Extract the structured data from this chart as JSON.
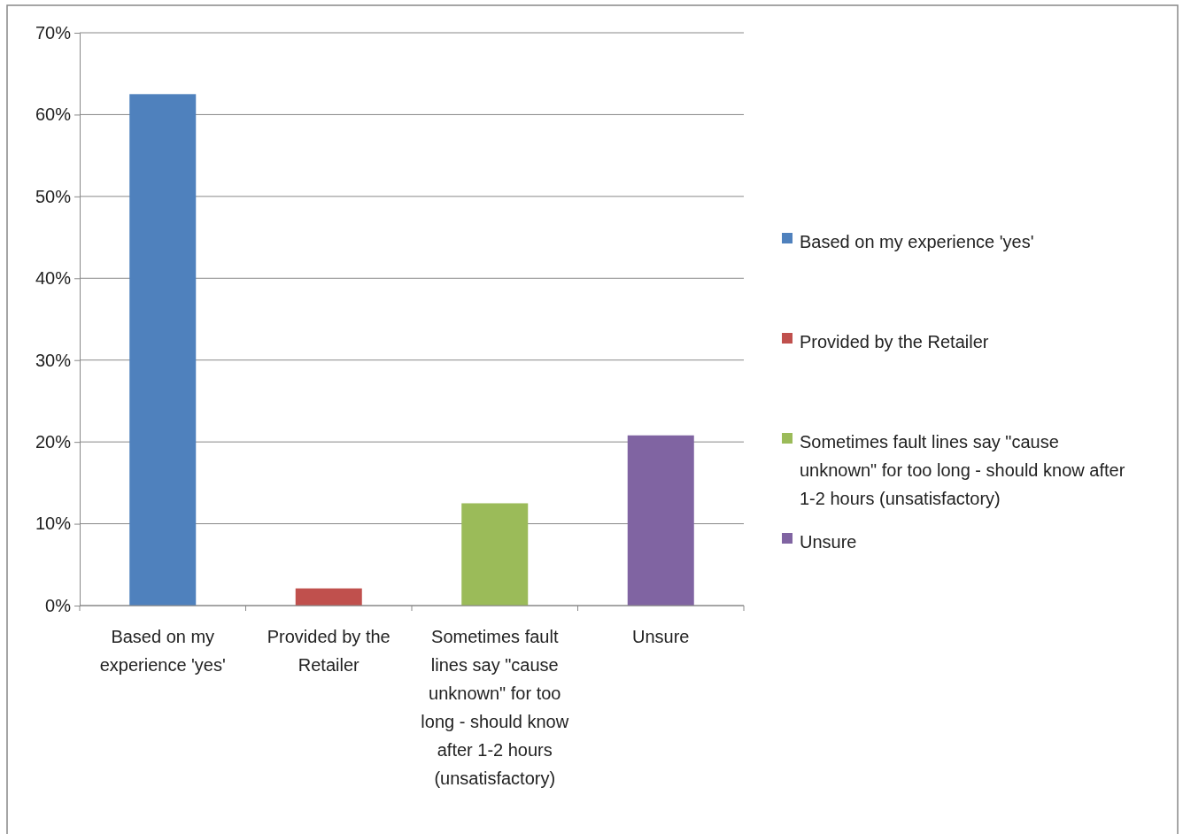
{
  "chart_data": {
    "type": "bar",
    "categories": [
      "Based on my experience 'yes'",
      "Provided by the Retailer",
      "Sometimes fault lines say \"cause unknown\" for too long - should know after 1-2 hours (unsatisfactory)",
      "Unsure"
    ],
    "series": [
      {
        "name": "Based on my experience 'yes'",
        "color": "#4f81bd",
        "values": [
          62.5,
          null,
          null,
          null
        ]
      },
      {
        "name": "Provided by the Retailer",
        "color": "#c0504d",
        "values": [
          null,
          2.1,
          null,
          null
        ]
      },
      {
        "name": "Sometimes fault lines say \"cause unknown\" for too long - should know after 1-2 hours (unsatisfactory)",
        "color": "#9bbb59",
        "values": [
          null,
          null,
          12.5,
          null
        ]
      },
      {
        "name": "Unsure",
        "color": "#8064a2",
        "values": [
          null,
          null,
          null,
          20.8
        ]
      }
    ],
    "ylim": [
      0,
      70
    ],
    "yticks": [
      {
        "value": 0,
        "label": "0%"
      },
      {
        "value": 10,
        "label": "10%"
      },
      {
        "value": 20,
        "label": "20%"
      },
      {
        "value": 30,
        "label": "30%"
      },
      {
        "value": 40,
        "label": "40%"
      },
      {
        "value": 50,
        "label": "50%"
      },
      {
        "value": 60,
        "label": "60%"
      },
      {
        "value": 70,
        "label": "70%"
      }
    ],
    "grid": "y",
    "legend": "right"
  }
}
